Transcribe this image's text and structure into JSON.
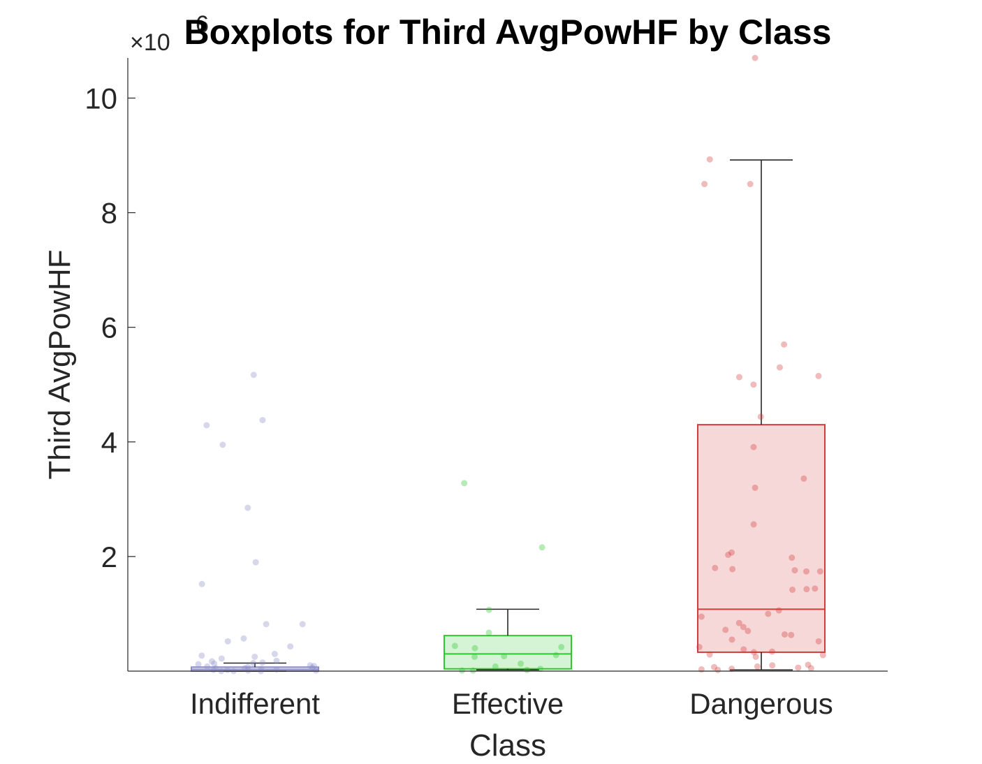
{
  "chart_data": {
    "type": "box",
    "title": "Boxplots for Third AvgPowHF by Class",
    "xlabel": "Class",
    "ylabel": "Third AvgPowHF",
    "y_exponent_label": "×10",
    "y_exponent_power": "6",
    "y_multiplier": 1000000,
    "ylim": [
      0,
      10.7
    ],
    "yticks": [
      2,
      4,
      6,
      8,
      10
    ],
    "ytick_labels": [
      "2",
      "4",
      "6",
      "8",
      "10"
    ],
    "categories": [
      "Indifferent",
      "Effective",
      "Dangerous"
    ],
    "boxes": [
      {
        "category": "Indifferent",
        "color": "#8c8cc8",
        "whisker_low": 0.0,
        "q1": 0.0,
        "median": 0.03,
        "q3": 0.07,
        "whisker_high": 0.14,
        "points": [
          5.17,
          4.38,
          4.29,
          3.95,
          2.85,
          1.9,
          1.52,
          0.82,
          0.82,
          0.57,
          0.52,
          0.43,
          0.3,
          0.27,
          0.25,
          0.22,
          0.18,
          0.17,
          0.15,
          0.14,
          0.13,
          0.12,
          0.1,
          0.09,
          0.08,
          0.07,
          0.06,
          0.05,
          0.05,
          0.04,
          0.03,
          0.02,
          0.02,
          0.01,
          0.01,
          0.0,
          0.0,
          0.0
        ]
      },
      {
        "category": "Effective",
        "color": "#2ec72e",
        "whisker_low": 0.02,
        "q1": 0.04,
        "median": 0.3,
        "q3": 0.62,
        "whisker_high": 1.08,
        "points": [
          3.28,
          2.16,
          1.07,
          0.67,
          0.44,
          0.42,
          0.4,
          0.28,
          0.26,
          0.25,
          0.13,
          0.08,
          0.04,
          0.02,
          0.01,
          0.01
        ]
      },
      {
        "category": "Dangerous",
        "color": "#d03c3c",
        "whisker_low": 0.02,
        "q1": 0.33,
        "median": 1.08,
        "q3": 4.3,
        "whisker_high": 8.92,
        "points": [
          10.7,
          8.93,
          8.5,
          8.5,
          5.7,
          5.3,
          5.15,
          5.13,
          5.0,
          4.44,
          3.91,
          3.36,
          3.2,
          2.56,
          2.07,
          2.03,
          1.98,
          1.8,
          1.78,
          1.76,
          1.74,
          1.74,
          1.44,
          1.43,
          1.42,
          1.06,
          1.0,
          0.95,
          0.84,
          0.77,
          0.72,
          0.7,
          0.64,
          0.63,
          0.55,
          0.52,
          0.42,
          0.38,
          0.34,
          0.33,
          0.29,
          0.28,
          0.25,
          0.11,
          0.1,
          0.08,
          0.07,
          0.06,
          0.05,
          0.04,
          0.03,
          0.02
        ]
      }
    ]
  }
}
